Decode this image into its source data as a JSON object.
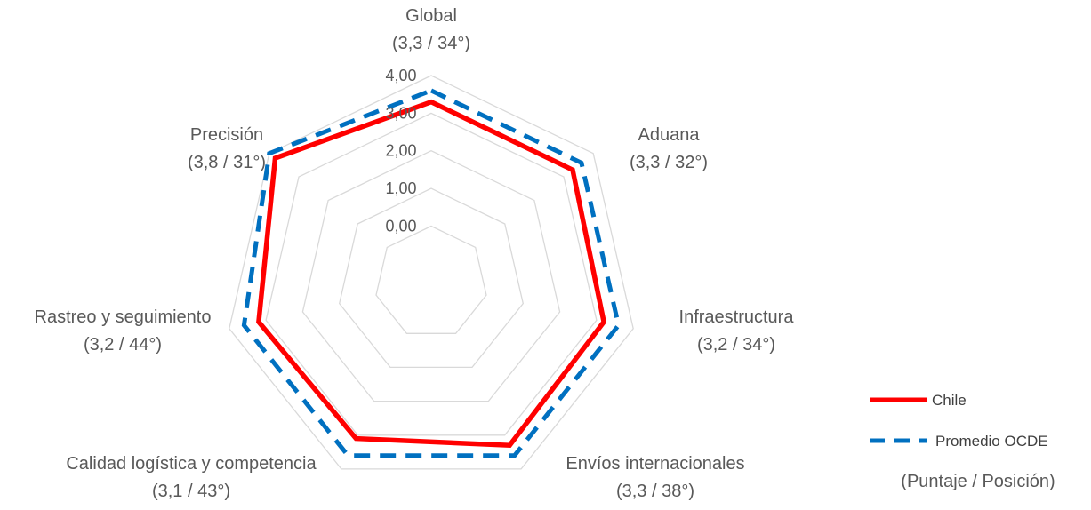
{
  "chart_data": {
    "type": "radar",
    "axes": [
      {
        "name": "Global",
        "sub": "(3,3 / 34°)"
      },
      {
        "name": "Aduana",
        "sub": "(3,3 / 32°)"
      },
      {
        "name": "Infraestructura",
        "sub": "(3,2 / 34°)"
      },
      {
        "name": "Envíos internacionales",
        "sub": "(3,3 / 38°)"
      },
      {
        "name": "Calidad logística y competencia",
        "sub": "(3,1 / 43°)"
      },
      {
        "name": "Rastreo y seguimiento",
        "sub": "(3,2 / 44°)"
      },
      {
        "name": "Precisión",
        "sub": "(3,8 / 31°)"
      }
    ],
    "rlim": [
      -1.5,
      4.0
    ],
    "ticks": [
      0,
      1,
      2,
      3,
      4
    ],
    "tick_labels": [
      "0,00",
      "1,00",
      "2,00",
      "3,00",
      "4,00"
    ],
    "grid": true,
    "series": [
      {
        "name": "Chile",
        "values": [
          3.3,
          3.3,
          3.2,
          3.3,
          3.1,
          3.2,
          3.8
        ],
        "color": "#ff0000",
        "style": "solid"
      },
      {
        "name": "Promedio OCDE",
        "values": [
          3.6,
          3.6,
          3.6,
          3.6,
          3.6,
          3.6,
          4.0
        ],
        "color": "#0070c0",
        "style": "dashed"
      }
    ],
    "legend_position": "bottom-right",
    "note": "(Puntaje / Posición)",
    "grid_color": "#d9d9d9"
  }
}
